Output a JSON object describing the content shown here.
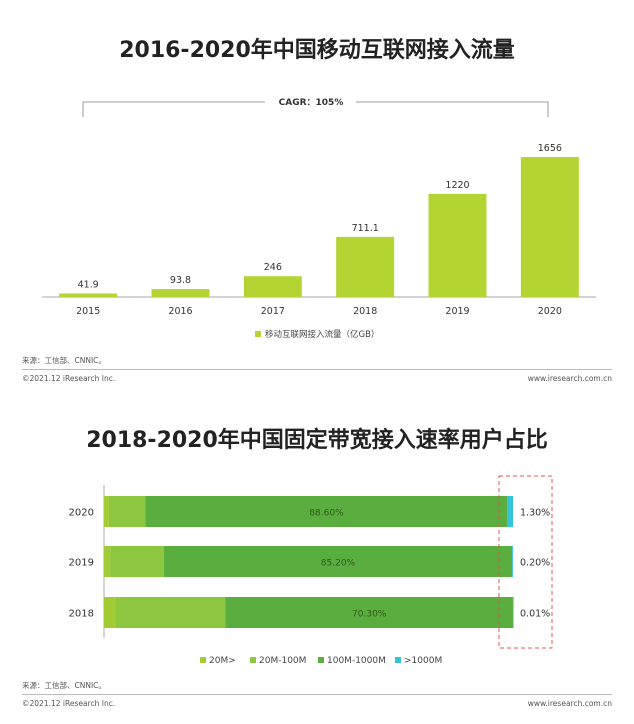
{
  "colors": {
    "bar": "#b3d432",
    "seg1": "#a3cc34",
    "seg2": "#8dc63f",
    "seg3": "#5aad3f",
    "seg4": "#33c4dc",
    "dashed": "#e05a4a",
    "axis": "#aaaaaa"
  },
  "panel1": {
    "title": "2016-2020年中国移动互联网接入流量",
    "cagr": "CAGR：105%",
    "source": "来源：工信部、CNNIC。",
    "copyright": "©2021.12 iResearch Inc.",
    "site": "www.iresearch.com.cn"
  },
  "panel2": {
    "title": "2018-2020年中国固定带宽接入速率用户占比",
    "source": "来源：工信部、CNNIC。",
    "copyright": "©2021.12 iResearch Inc.",
    "site": "www.iresearch.com.cn"
  },
  "chart_data": [
    {
      "type": "bar",
      "title": "2016-2020年中国移动互联网接入流量",
      "categories": [
        "2015",
        "2016",
        "2017",
        "2018",
        "2019",
        "2020"
      ],
      "series": [
        {
          "name": "移动互联网接入流量（亿GB）",
          "values": [
            41.9,
            93.8,
            246,
            711.1,
            1220,
            1656
          ],
          "labels": [
            "41.9",
            "93.8",
            "246",
            "711.1",
            "1220",
            "1656"
          ]
        }
      ],
      "ylim": [
        0,
        1700
      ],
      "annotation": "CAGR：105%",
      "legend": "bottom",
      "grid": false
    },
    {
      "type": "bar",
      "orientation": "horizontal",
      "stacked": true,
      "percent": true,
      "title": "2018-2020年中国固定带宽接入速率用户占比",
      "categories": [
        "2020",
        "2019",
        "2018"
      ],
      "series": [
        {
          "name": "20M>",
          "values": [
            1.2,
            1.5,
            2.8
          ]
        },
        {
          "name": "20M-100M",
          "values": [
            8.9,
            13.1,
            26.89
          ]
        },
        {
          "name": "100M-1000M",
          "values": [
            88.6,
            85.2,
            70.3
          ]
        },
        {
          "name": ">1000M",
          "values": [
            1.3,
            0.2,
            0.01
          ]
        }
      ],
      "mid_labels": [
        "88.60%",
        "85.20%",
        "70.30%"
      ],
      "right_labels": [
        "1.30%",
        "0.20%",
        "0.01%"
      ],
      "legend": "bottom",
      "grid": false
    }
  ]
}
